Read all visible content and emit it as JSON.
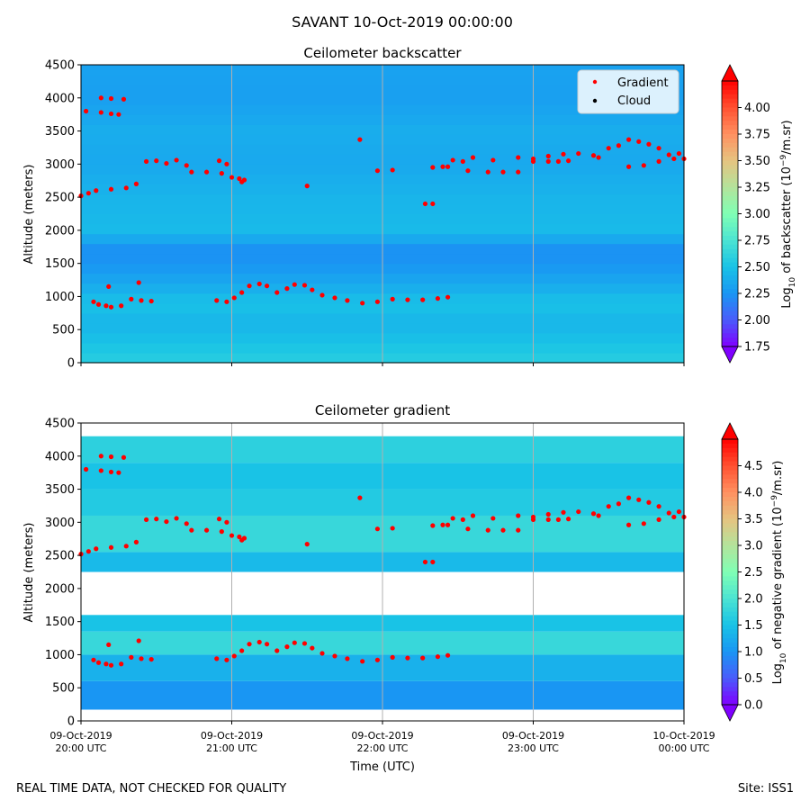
{
  "figure": {
    "suptitle": "SAVANT 10-Oct-2019 00:00:00",
    "footer_left": "REAL TIME DATA, NOT CHECKED FOR QUALITY",
    "footer_right": "Site: ISS1"
  },
  "colors": {
    "rainbow": [
      "#7f00ff",
      "#4a5cfb",
      "#1996f3",
      "#19c3e6",
      "#4ce4d2",
      "#80ffb4",
      "#b4e39b",
      "#e6c380",
      "#ff9060",
      "#ff5030",
      "#ff0000"
    ],
    "gradient_marker": "#ff0000",
    "cloud_marker": "#000000",
    "grid": "#b0b0b0"
  },
  "chart_data": [
    {
      "type": "heatmap",
      "title": "Ceilometer backscatter",
      "ylabel": "Altitude (meters)",
      "xlabel": "",
      "xlim": [
        "2019-10-09 20:00",
        "2019-10-10 00:00"
      ],
      "ylim": [
        0,
        4500
      ],
      "yticks": [
        "0",
        "500",
        "1000",
        "1500",
        "2000",
        "2500",
        "3000",
        "3500",
        "4000",
        "4500"
      ],
      "xticks_shown": false,
      "grid": "vertical",
      "colorbar": {
        "label_prefix": "Log",
        "label_sub": "10",
        "label_mid": " of backscatter (10",
        "label_sup": "−9",
        "label_suffix": "/m.sr)",
        "range": [
          1.75,
          4.25
        ],
        "ticks": [
          "1.75",
          "2.00",
          "2.25",
          "2.50",
          "2.75",
          "3.00",
          "3.25",
          "3.50",
          "3.75",
          "4.00"
        ]
      },
      "legend": {
        "placement": "top-right",
        "entries": [
          "Gradient",
          "Cloud"
        ]
      },
      "field_profile": [
        {
          "altitude": 0,
          "value": 2.58
        },
        {
          "altitude": 300,
          "value": 2.5
        },
        {
          "altitude": 600,
          "value": 2.42
        },
        {
          "altitude": 900,
          "value": 2.5
        },
        {
          "altitude": 1200,
          "value": 2.35
        },
        {
          "altitude": 1500,
          "value": 2.25
        },
        {
          "altitude": 1700,
          "value": 2.22
        },
        {
          "altitude": 2000,
          "value": 2.45
        },
        {
          "altitude": 2500,
          "value": 2.42
        },
        {
          "altitude": 3000,
          "value": 2.35
        },
        {
          "altitude": 3500,
          "value": 2.38
        },
        {
          "altitude": 4000,
          "value": 2.3
        },
        {
          "altitude": 4500,
          "value": 2.32
        }
      ],
      "series": [
        {
          "name": "Gradient",
          "points": [
            [
              "20:00",
              2520
            ],
            [
              "20:03",
              2560
            ],
            [
              "20:06",
              2600
            ],
            [
              "20:12",
              2620
            ],
            [
              "20:18",
              2640
            ],
            [
              "20:22",
              2700
            ],
            [
              "20:02",
              3800
            ],
            [
              "20:08",
              3780
            ],
            [
              "20:12",
              3760
            ],
            [
              "20:15",
              3750
            ],
            [
              "20:08",
              4000
            ],
            [
              "20:12",
              3990
            ],
            [
              "20:17",
              3980
            ],
            [
              "20:26",
              3040
            ],
            [
              "20:30",
              3050
            ],
            [
              "20:34",
              3010
            ],
            [
              "20:38",
              3060
            ],
            [
              "20:42",
              2980
            ],
            [
              "20:44",
              2880
            ],
            [
              "20:50",
              2880
            ],
            [
              "20:56",
              2860
            ],
            [
              "21:00",
              2800
            ],
            [
              "21:03",
              2780
            ],
            [
              "21:05",
              2760
            ],
            [
              "20:55",
              3050
            ],
            [
              "20:58",
              3000
            ],
            [
              "21:04",
              2730
            ],
            [
              "20:05",
              920
            ],
            [
              "20:07",
              880
            ],
            [
              "20:10",
              860
            ],
            [
              "20:12",
              840
            ],
            [
              "20:16",
              860
            ],
            [
              "20:20",
              960
            ],
            [
              "20:24",
              940
            ],
            [
              "20:28",
              930
            ],
            [
              "20:11",
              1150
            ],
            [
              "20:23",
              1210
            ],
            [
              "20:54",
              940
            ],
            [
              "20:58",
              920
            ],
            [
              "21:01",
              980
            ],
            [
              "21:04",
              1060
            ],
            [
              "21:07",
              1160
            ],
            [
              "21:11",
              1190
            ],
            [
              "21:14",
              1160
            ],
            [
              "21:18",
              1060
            ],
            [
              "21:22",
              1120
            ],
            [
              "21:25",
              1180
            ],
            [
              "21:29",
              1170
            ],
            [
              "21:32",
              1100
            ],
            [
              "21:36",
              1020
            ],
            [
              "21:41",
              980
            ],
            [
              "21:46",
              940
            ],
            [
              "21:52",
              900
            ],
            [
              "21:58",
              920
            ],
            [
              "22:04",
              960
            ],
            [
              "22:10",
              950
            ],
            [
              "22:16",
              950
            ],
            [
              "22:22",
              970
            ],
            [
              "22:26",
              990
            ],
            [
              "21:30",
              2670
            ],
            [
              "21:51",
              3370
            ],
            [
              "21:58",
              2900
            ],
            [
              "22:04",
              2910
            ],
            [
              "22:17",
              2400
            ],
            [
              "22:20",
              2400
            ],
            [
              "22:20",
              2950
            ],
            [
              "22:24",
              2960
            ],
            [
              "22:28",
              3060
            ],
            [
              "22:32",
              3040
            ],
            [
              "22:36",
              3100
            ],
            [
              "22:44",
              3060
            ],
            [
              "22:26",
              2960
            ],
            [
              "22:34",
              2900
            ],
            [
              "22:42",
              2880
            ],
            [
              "22:48",
              2880
            ],
            [
              "22:54",
              2880
            ],
            [
              "22:54",
              3100
            ],
            [
              "23:00",
              3080
            ],
            [
              "23:06",
              3120
            ],
            [
              "23:12",
              3150
            ],
            [
              "23:18",
              3160
            ],
            [
              "23:24",
              3130
            ],
            [
              "23:00",
              3040
            ],
            [
              "23:06",
              3040
            ],
            [
              "23:10",
              3040
            ],
            [
              "23:14",
              3050
            ],
            [
              "23:26",
              3100
            ],
            [
              "23:30",
              3240
            ],
            [
              "23:34",
              3280
            ],
            [
              "23:38",
              3370
            ],
            [
              "23:42",
              3340
            ],
            [
              "23:46",
              3300
            ],
            [
              "23:50",
              3240
            ],
            [
              "23:54",
              3140
            ],
            [
              "23:58",
              3160
            ],
            [
              "23:38",
              2960
            ],
            [
              "23:44",
              2980
            ],
            [
              "23:50",
              3040
            ],
            [
              "23:56",
              3080
            ],
            [
              "24:00",
              3080
            ]
          ]
        },
        {
          "name": "Cloud",
          "points": []
        }
      ]
    },
    {
      "type": "heatmap",
      "title": "Ceilometer gradient",
      "ylabel": "Altitude (meters)",
      "xlabel": "Time (UTC)",
      "xlim": [
        "2019-10-09 20:00",
        "2019-10-10 00:00"
      ],
      "ylim": [
        0,
        4500
      ],
      "yticks": [
        "0",
        "500",
        "1000",
        "1500",
        "2000",
        "2500",
        "3000",
        "3500",
        "4000",
        "4500"
      ],
      "xticks": [
        {
          "time": "20:00",
          "line1": "09-Oct-2019",
          "line2": "20:00 UTC"
        },
        {
          "time": "21:00",
          "line1": "09-Oct-2019",
          "line2": "21:00 UTC"
        },
        {
          "time": "22:00",
          "line1": "09-Oct-2019",
          "line2": "22:00 UTC"
        },
        {
          "time": "23:00",
          "line1": "09-Oct-2019",
          "line2": "23:00 UTC"
        },
        {
          "time": "24:00",
          "line1": "10-Oct-2019",
          "line2": "00:00 UTC"
        }
      ],
      "grid": "vertical",
      "colorbar": {
        "label_prefix": "Log",
        "label_sub": "10",
        "label_mid": " of negative gradient (10",
        "label_sup": "−9",
        "label_suffix": "/m.sr)",
        "range": [
          0,
          5
        ],
        "ticks": [
          "0.0",
          "0.5",
          "1.0",
          "1.5",
          "2.0",
          "2.5",
          "3.0",
          "3.5",
          "4.0",
          "4.5"
        ]
      },
      "layers": [
        {
          "from": 170,
          "to": 600,
          "value": 1.0
        },
        {
          "from": 600,
          "to": 1000,
          "value": 1.3
        },
        {
          "from": 1000,
          "to": 1350,
          "value": 1.8
        },
        {
          "from": 1350,
          "to": 1600,
          "value": 1.5
        },
        {
          "from": 2250,
          "to": 2550,
          "value": 1.4
        },
        {
          "from": 2550,
          "to": 3100,
          "value": 1.8
        },
        {
          "from": 3100,
          "to": 3500,
          "value": 1.6
        },
        {
          "from": 3500,
          "to": 3900,
          "value": 1.5
        },
        {
          "from": 3900,
          "to": 4300,
          "value": 1.7
        }
      ],
      "series": [
        {
          "name": "Gradient",
          "same_as": "Ceilometer backscatter"
        }
      ]
    }
  ]
}
